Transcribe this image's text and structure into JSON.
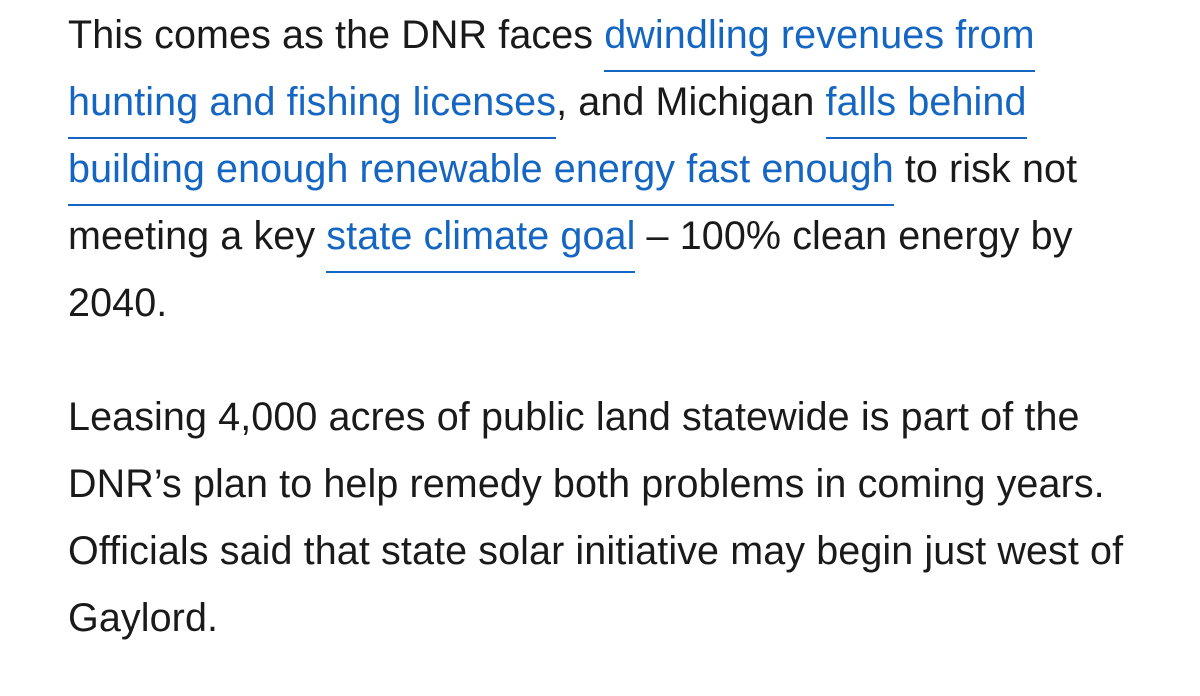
{
  "paragraphs": [
    {
      "segments": [
        {
          "text": "This comes as the DNR faces "
        },
        {
          "link": "dwindling revenues from hunting and fishing licenses"
        },
        {
          "text": ", and Michigan "
        },
        {
          "link": "falls behind building enough renewable energy fast enough"
        },
        {
          "text": " to risk not meeting a key "
        },
        {
          "link": "state climate goal"
        },
        {
          "text": " – 100% clean energy by 2040."
        }
      ]
    },
    {
      "text": "Leasing 4,000 acres of public land statewide is part of the DNR’s plan to help remedy both problems in coming years. Officials said that state solar initiative may begin just west of Gaylord."
    }
  ],
  "colors": {
    "link": "#1466c2",
    "text": "#1a1a1a",
    "background": "#ffffff"
  }
}
